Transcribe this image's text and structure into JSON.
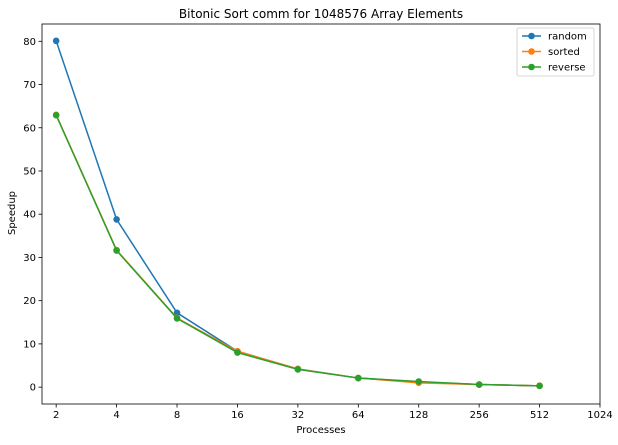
{
  "chart_data": {
    "type": "line",
    "title": "Bitonic Sort comm for 1048576 Array Elements",
    "xlabel": "Processes",
    "ylabel": "Speedup",
    "x_scale": "log2",
    "xlim": [
      1.7,
      1024
    ],
    "ylim": [
      -3.9,
      84
    ],
    "x_ticks": [
      2,
      4,
      8,
      16,
      32,
      64,
      128,
      256,
      512,
      1024
    ],
    "y_ticks": [
      0,
      10,
      20,
      30,
      40,
      50,
      60,
      70,
      80
    ],
    "x": [
      2,
      4,
      8,
      16,
      32,
      64,
      128,
      256,
      512
    ],
    "grid": false,
    "legend_position": "top-right",
    "series": [
      {
        "name": "random",
        "color": "#1f77b4",
        "marker": "circle",
        "values": [
          80.1,
          38.8,
          17.2,
          8.3,
          4.2,
          2.1,
          1.2,
          0.6,
          0.3
        ]
      },
      {
        "name": "sorted",
        "color": "#ff7f0e",
        "marker": "circle",
        "values": [
          63.0,
          31.7,
          16.0,
          8.3,
          4.2,
          2.1,
          1.0,
          0.6,
          0.3
        ]
      },
      {
        "name": "reverse",
        "color": "#2ca02c",
        "marker": "circle",
        "values": [
          62.9,
          31.6,
          15.9,
          8.0,
          4.1,
          2.1,
          1.3,
          0.6,
          0.3
        ]
      }
    ]
  }
}
